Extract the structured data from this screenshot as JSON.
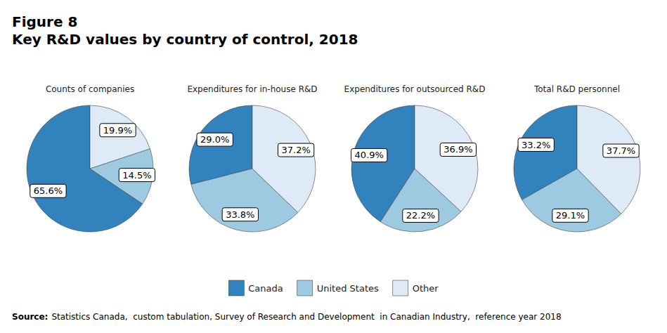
{
  "chart_data": {
    "type": "pie",
    "title": "Figure 8",
    "subtitle": "Key R&D values by country of control, 2018",
    "source_label": "Source:",
    "source": "Statistics Canada,  custom tabulation, Survey of Research and Development  in Canadian Industry,  reference year 2018",
    "categories": [
      "Canada",
      "United States",
      "Other"
    ],
    "colors": [
      "#3182bd",
      "#9ecae1",
      "#deebf7"
    ],
    "series": [
      {
        "name": "Counts of companies",
        "values": [
          65.6,
          14.5,
          19.9
        ],
        "value_labels": [
          "65.6%",
          "14.5%",
          "19.9%"
        ]
      },
      {
        "name": "Expenditures for in-house R&D",
        "values": [
          29.0,
          33.8,
          37.2
        ],
        "value_labels": [
          "29.0%",
          "33.8%",
          "37.2%"
        ]
      },
      {
        "name": "Expenditures for outsourced R&D",
        "values": [
          40.9,
          22.2,
          36.9
        ],
        "value_labels": [
          "40.9%",
          "22.2%",
          "36.9%"
        ]
      },
      {
        "name": "Total R&D personnel",
        "values": [
          33.2,
          29.1,
          37.7
        ],
        "value_labels": [
          "33.2%",
          "29.1%",
          "37.7%"
        ]
      }
    ],
    "data_labels": true,
    "legend": "bottom"
  }
}
